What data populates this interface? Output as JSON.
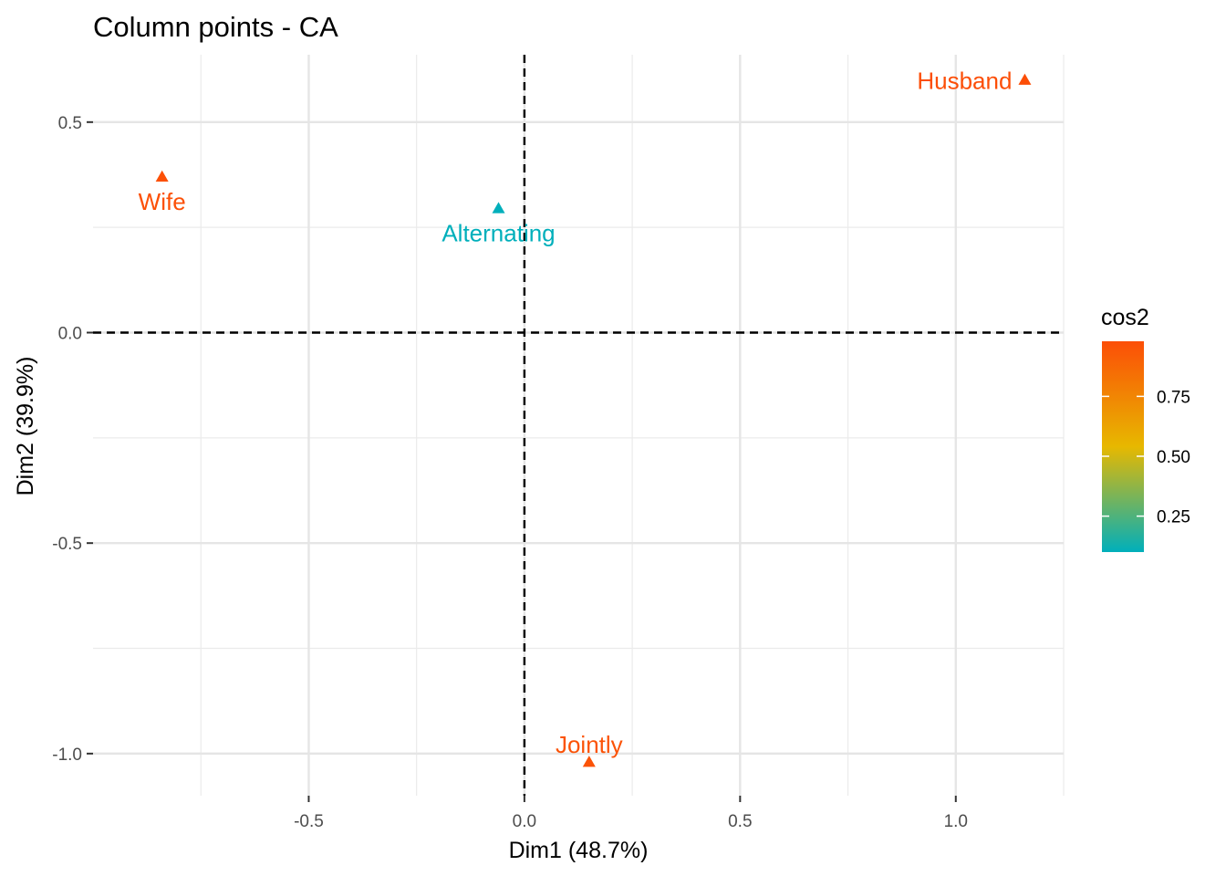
{
  "chart_data": {
    "type": "scatter",
    "title": "Column points - CA",
    "xlabel": "Dim1 (48.7%)",
    "ylabel": "Dim2 (39.9%)",
    "xlim": [
      -1.0,
      1.25
    ],
    "ylim": [
      -1.1,
      0.66
    ],
    "x_ticks": [
      {
        "value": -0.5,
        "label": "-0.5"
      },
      {
        "value": 0.0,
        "label": "0.0"
      },
      {
        "value": 0.5,
        "label": "0.5"
      },
      {
        "value": 1.0,
        "label": "1.0"
      }
    ],
    "y_ticks": [
      {
        "value": 0.5,
        "label": "0.5"
      },
      {
        "value": 0.0,
        "label": "0.0"
      },
      {
        "value": -0.5,
        "label": "-0.5"
      },
      {
        "value": -1.0,
        "label": "-1.0"
      }
    ],
    "grid": true,
    "reference_lines": {
      "x": 0,
      "y": 0,
      "style": "dashed"
    },
    "marker": "triangle",
    "points": [
      {
        "label": "Husband",
        "x": 1.16,
        "y": 0.6,
        "cos2": 0.98,
        "label_side": "left"
      },
      {
        "label": "Wife",
        "x": -0.84,
        "y": 0.37,
        "cos2": 0.97,
        "label_side": "below"
      },
      {
        "label": "Alternating",
        "x": -0.06,
        "y": 0.295,
        "cos2": 0.1,
        "label_side": "below"
      },
      {
        "label": "Jointly",
        "x": 0.15,
        "y": -1.02,
        "cos2": 0.96,
        "label_side": "above"
      }
    ],
    "legend": {
      "title": "cos2",
      "position": "right",
      "range": [
        0.1,
        0.98
      ],
      "ticks": [
        {
          "value": 0.25,
          "label": "0.25"
        },
        {
          "value": 0.5,
          "label": "0.50"
        },
        {
          "value": 0.75,
          "label": "0.75"
        }
      ],
      "gradient": [
        "#00AFBB",
        "#E7B800",
        "#FC4E07"
      ]
    }
  }
}
